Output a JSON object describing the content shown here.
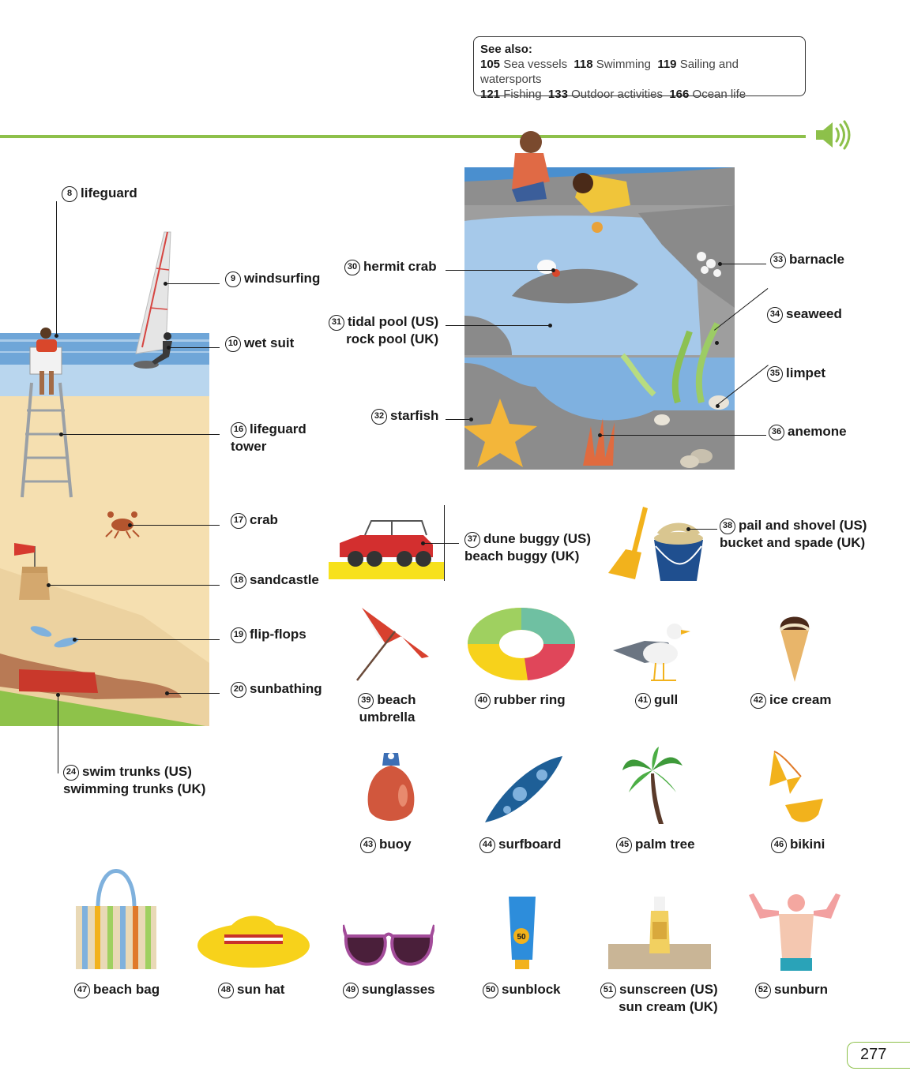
{
  "see_also": {
    "heading": "See also:",
    "refs": [
      {
        "page": "105",
        "topic": "Sea vessels"
      },
      {
        "page": "118",
        "topic": "Swimming"
      },
      {
        "page": "119",
        "topic": "Sailing and watersports"
      },
      {
        "page": "121",
        "topic": "Fishing"
      },
      {
        "page": "133",
        "topic": "Outdoor activities"
      },
      {
        "page": "166",
        "topic": "Ocean life"
      }
    ]
  },
  "colors": {
    "accent": "#8dc04a",
    "sand": "#f5dfb0",
    "sea": "#7fb1dd",
    "rock": "#8b8b8b"
  },
  "icons": {
    "audio": "speaker-icon"
  },
  "labels": {
    "l8": {
      "num": "8",
      "line1": "lifeguard"
    },
    "l9": {
      "num": "9",
      "line1": "windsurfing"
    },
    "l10": {
      "num": "10",
      "line1": "wet suit"
    },
    "l16": {
      "num": "16",
      "line1": "lifeguard",
      "line2": "tower"
    },
    "l17": {
      "num": "17",
      "line1": "crab"
    },
    "l18": {
      "num": "18",
      "line1": "sandcastle"
    },
    "l19": {
      "num": "19",
      "line1": "flip-flops"
    },
    "l20": {
      "num": "20",
      "line1": "sunbathing"
    },
    "l24": {
      "num": "24",
      "line1": "swim trunks (US)",
      "line2": "swimming trunks (UK)"
    },
    "l30": {
      "num": "30",
      "line1": "hermit crab"
    },
    "l31": {
      "num": "31",
      "line1": "tidal pool (US)",
      "line2": "rock pool (UK)"
    },
    "l32": {
      "num": "32",
      "line1": "starfish"
    },
    "l33": {
      "num": "33",
      "line1": "barnacle"
    },
    "l34": {
      "num": "34",
      "line1": "seaweed"
    },
    "l35": {
      "num": "35",
      "line1": "limpet"
    },
    "l36": {
      "num": "36",
      "line1": "anemone"
    },
    "l37": {
      "num": "37",
      "line1": "dune buggy (US)",
      "line2": "beach buggy (UK)"
    },
    "l38": {
      "num": "38",
      "line1": "pail and shovel (US)",
      "line2": "bucket and spade (UK)"
    },
    "l39": {
      "num": "39",
      "line1": "beach",
      "line2": "umbrella"
    },
    "l40": {
      "num": "40",
      "line1": "rubber ring"
    },
    "l41": {
      "num": "41",
      "line1": "gull"
    },
    "l42": {
      "num": "42",
      "line1": "ice cream"
    },
    "l43": {
      "num": "43",
      "line1": "buoy"
    },
    "l44": {
      "num": "44",
      "line1": "surfboard"
    },
    "l45": {
      "num": "45",
      "line1": "palm tree"
    },
    "l46": {
      "num": "46",
      "line1": "bikini"
    },
    "l47": {
      "num": "47",
      "line1": "beach bag"
    },
    "l48": {
      "num": "48",
      "line1": "sun hat"
    },
    "l49": {
      "num": "49",
      "line1": "sunglasses"
    },
    "l50": {
      "num": "50",
      "line1": "sunblock"
    },
    "l51": {
      "num": "51",
      "line1": "sunscreen (US)",
      "line2": "sun cream (UK)"
    },
    "l52": {
      "num": "52",
      "line1": "sunburn"
    }
  },
  "sunblock_spf": "50",
  "page_number": "277"
}
